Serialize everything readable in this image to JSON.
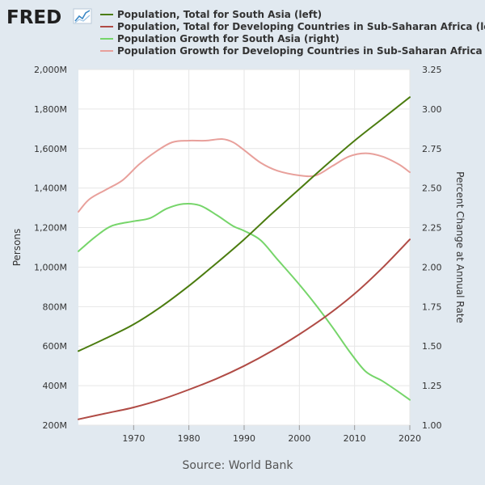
{
  "logo": {
    "text": "FRED"
  },
  "chart_data": {
    "type": "line",
    "source": "Source: World Bank",
    "x": [
      1960,
      1965,
      1970,
      1975,
      1980,
      1985,
      1990,
      1995,
      2000,
      2005,
      2010,
      2015,
      2020
    ],
    "x_ticks": [
      1970,
      1980,
      1990,
      2000,
      2010,
      2020
    ],
    "x_tick_labels": [
      "1970",
      "1980",
      "1990",
      "2000",
      "2010",
      "2020"
    ],
    "xlim": [
      1960,
      2020
    ],
    "left_axis": {
      "label": "Persons",
      "ylim": [
        200,
        2000
      ],
      "ticks": [
        200,
        400,
        600,
        800,
        1000,
        1200,
        1400,
        1600,
        1800,
        2000
      ],
      "tick_labels": [
        "200M",
        "400M",
        "600M",
        "800M",
        "1,000M",
        "1,200M",
        "1,400M",
        "1,600M",
        "1,800M",
        "2,000M"
      ]
    },
    "right_axis": {
      "label": "Percent Change at Annual Rate",
      "ylim": [
        1.0,
        3.25
      ],
      "ticks": [
        1.0,
        1.25,
        1.5,
        1.75,
        2.0,
        2.25,
        2.5,
        2.75,
        3.0,
        3.25
      ],
      "tick_labels": [
        "1.00",
        "1.25",
        "1.50",
        "1.75",
        "2.00",
        "2.25",
        "2.50",
        "2.75",
        "3.00",
        "3.25"
      ]
    },
    "series": [
      {
        "name": "Population, Total for South Asia (left)",
        "axis": "left",
        "color": "#4b7c0f",
        "x": [
          1960,
          1965,
          1970,
          1975,
          1980,
          1985,
          1990,
          1995,
          2000,
          2005,
          2010,
          2015,
          2020
        ],
        "values": [
          575,
          640,
          710,
          800,
          905,
          1020,
          1140,
          1270,
          1395,
          1520,
          1640,
          1750,
          1860
        ]
      },
      {
        "name": "Population, Total for Developing Countries in Sub-Saharan Africa (left)",
        "axis": "left",
        "color": "#b04b45",
        "x": [
          1960,
          1965,
          1970,
          1975,
          1980,
          1985,
          1990,
          1995,
          2000,
          2005,
          2010,
          2015,
          2020
        ],
        "values": [
          230,
          260,
          290,
          330,
          380,
          435,
          500,
          575,
          660,
          755,
          865,
          995,
          1140
        ]
      },
      {
        "name": "Population Growth for South Asia (right)",
        "axis": "right",
        "color": "#76d56a",
        "x": [
          1960,
          1963,
          1966,
          1970,
          1973,
          1976,
          1979,
          1982,
          1985,
          1988,
          1990,
          1993,
          1996,
          2000,
          2003,
          2006,
          2009,
          2012,
          2015,
          2018,
          2020
        ],
        "values": [
          2.1,
          2.19,
          2.26,
          2.29,
          2.31,
          2.37,
          2.4,
          2.39,
          2.33,
          2.26,
          2.23,
          2.17,
          2.05,
          1.89,
          1.76,
          1.62,
          1.47,
          1.34,
          1.28,
          1.21,
          1.16
        ]
      },
      {
        "name": "Population Growth for Developing Countries in Sub-Saharan Africa (right)",
        "axis": "right",
        "color": "#e8a09b",
        "x": [
          1960,
          1962,
          1965,
          1968,
          1971,
          1974,
          1977,
          1980,
          1983,
          1986,
          1988,
          1990,
          1993,
          1996,
          2000,
          2003,
          2006,
          2009,
          2012,
          2015,
          2018,
          2020
        ],
        "values": [
          2.35,
          2.43,
          2.49,
          2.55,
          2.65,
          2.73,
          2.79,
          2.8,
          2.8,
          2.81,
          2.79,
          2.74,
          2.66,
          2.61,
          2.58,
          2.58,
          2.64,
          2.7,
          2.72,
          2.7,
          2.65,
          2.6
        ]
      }
    ]
  }
}
